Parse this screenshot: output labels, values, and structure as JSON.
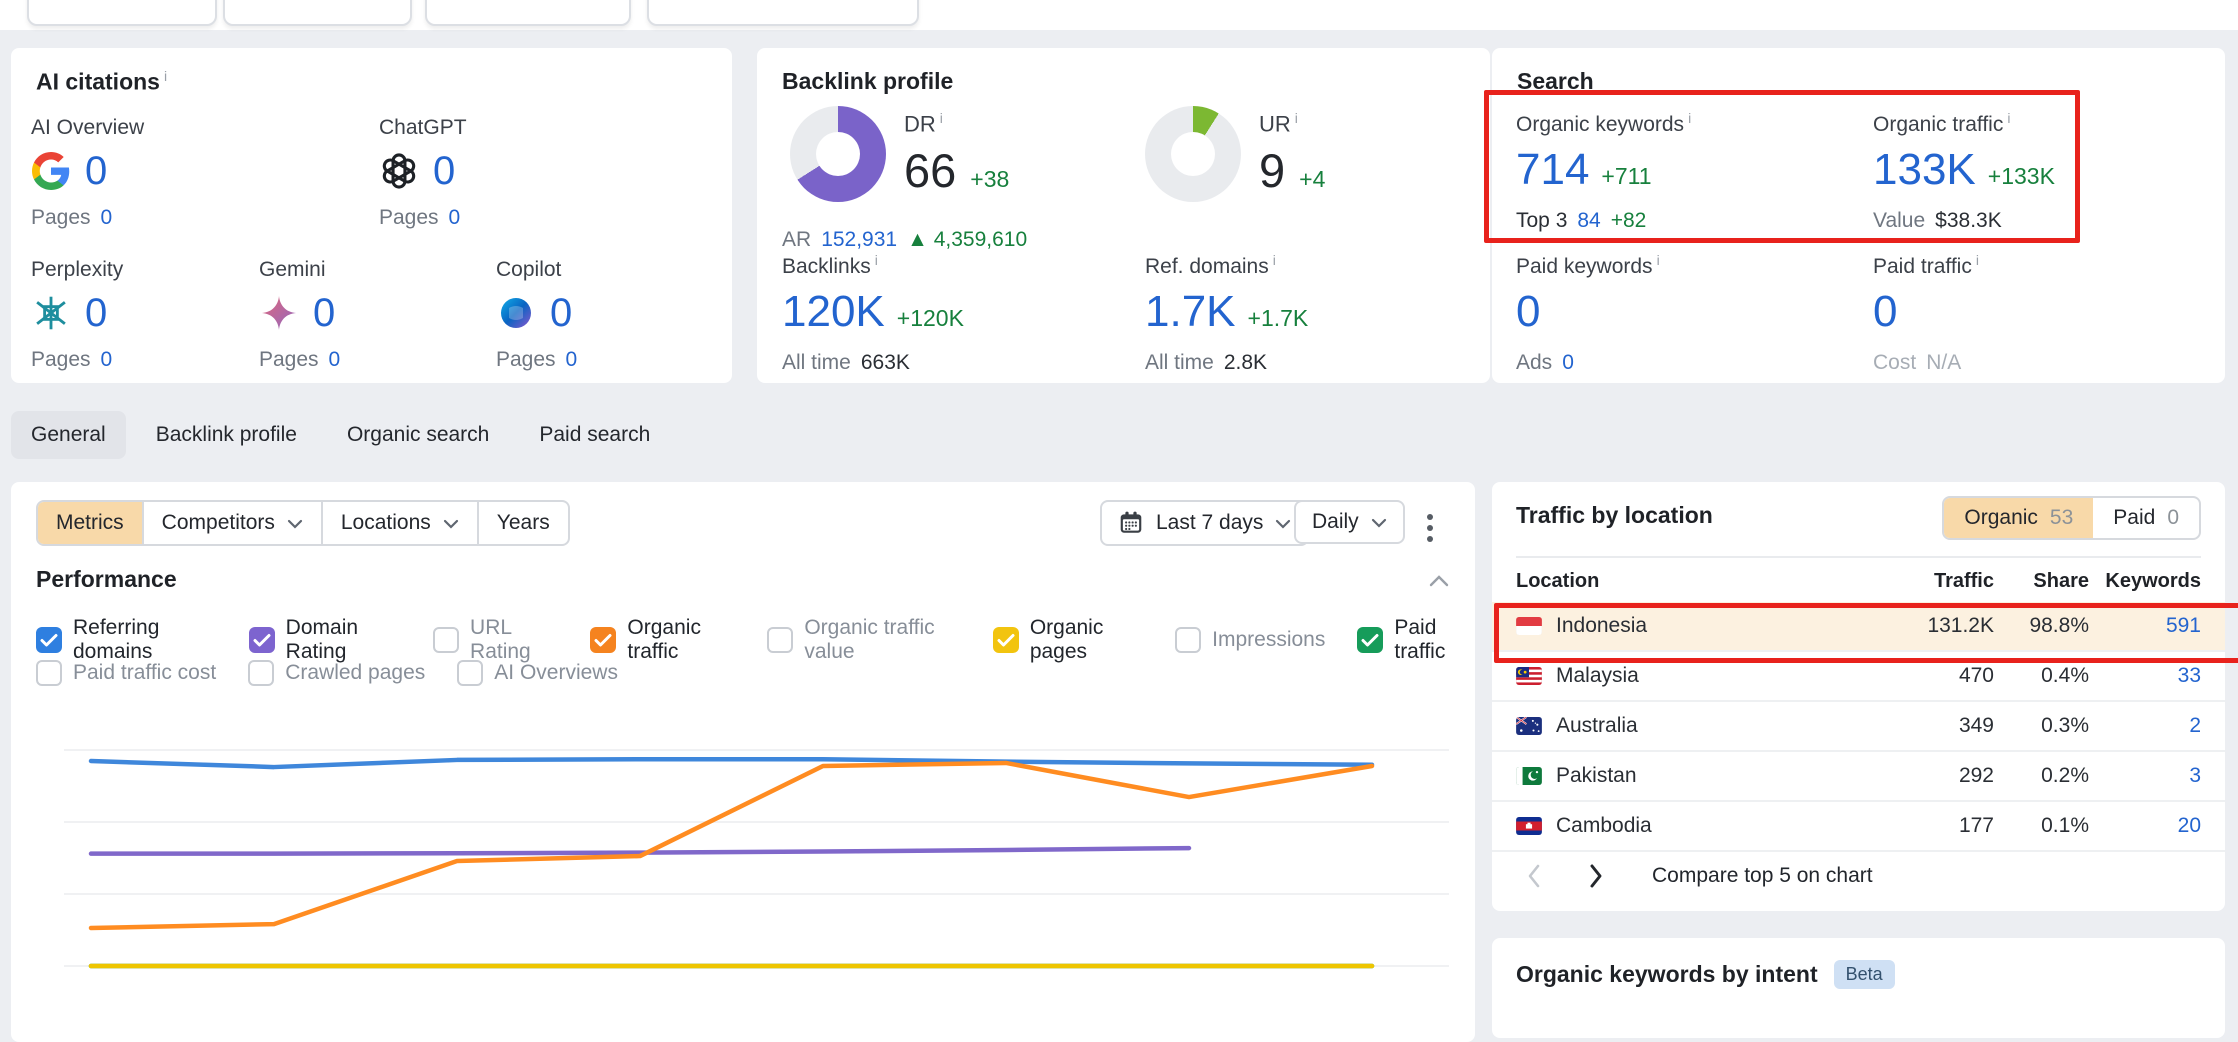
{
  "ai_citations": {
    "title": "AI citations",
    "pages_label": "Pages",
    "items": [
      {
        "name": "AI Overview",
        "icon": "google",
        "value": "0",
        "pages": "0"
      },
      {
        "name": "ChatGPT",
        "icon": "openai",
        "value": "0",
        "pages": "0"
      },
      {
        "name": "Perplexity",
        "icon": "perplexity",
        "value": "0",
        "pages": "0"
      },
      {
        "name": "Gemini",
        "icon": "gemini",
        "value": "0",
        "pages": "0"
      },
      {
        "name": "Copilot",
        "icon": "copilot",
        "value": "0",
        "pages": "0"
      }
    ]
  },
  "backlink_profile": {
    "title": "Backlink profile",
    "dr": {
      "label": "DR",
      "value": "66",
      "delta": "+38",
      "percent": 66,
      "ring_color": "#7a63c9"
    },
    "ar": {
      "label": "AR",
      "value": "152,931",
      "delta": "4,359,610"
    },
    "ur": {
      "label": "UR",
      "value": "9",
      "delta": "+4",
      "percent": 9,
      "ring_color": "#7cb832"
    },
    "backlinks": {
      "label": "Backlinks",
      "value": "120K",
      "delta": "+120K",
      "sub_label": "All time",
      "sub_value": "663K"
    },
    "ref_domains": {
      "label": "Ref. domains",
      "value": "1.7K",
      "delta": "+1.7K",
      "sub_label": "All time",
      "sub_value": "2.8K"
    }
  },
  "search": {
    "title": "Search",
    "organic_keywords": {
      "label": "Organic keywords",
      "value": "714",
      "delta": "+711",
      "sub_label": "Top 3",
      "sub_value": "84",
      "sub_delta": "+82"
    },
    "organic_traffic": {
      "label": "Organic traffic",
      "value": "133K",
      "delta": "+133K",
      "sub_label": "Value",
      "sub_value": "$38.3K"
    },
    "paid_keywords": {
      "label": "Paid keywords",
      "value": "0",
      "sub_label": "Ads",
      "sub_value": "0"
    },
    "paid_traffic": {
      "label": "Paid traffic",
      "value": "0",
      "sub_label": "Cost",
      "sub_value": "N/A"
    }
  },
  "tabs": [
    {
      "label": "General",
      "active": true
    },
    {
      "label": "Backlink profile",
      "active": false
    },
    {
      "label": "Organic search",
      "active": false
    },
    {
      "label": "Paid search",
      "active": false
    }
  ],
  "filters": {
    "segments": [
      {
        "label": "Metrics",
        "active": true,
        "chevron": false
      },
      {
        "label": "Competitors",
        "active": false,
        "chevron": true
      },
      {
        "label": "Locations",
        "active": false,
        "chevron": true
      },
      {
        "label": "Years",
        "active": false,
        "chevron": false
      }
    ],
    "date_range": "Last 7 days",
    "granularity": "Daily"
  },
  "performance": {
    "title": "Performance",
    "checkbox_rows": [
      [
        {
          "label": "Referring domains",
          "checked": true,
          "color": "#2e7fe0"
        },
        {
          "label": "Domain Rating",
          "checked": true,
          "color": "#7d64cf"
        },
        {
          "label": "URL Rating",
          "checked": false
        },
        {
          "label": "Organic traffic",
          "checked": true,
          "color": "#f5831f"
        },
        {
          "label": "Organic traffic value",
          "checked": false
        },
        {
          "label": "Organic pages",
          "checked": true,
          "color": "#f2c40f"
        },
        {
          "label": "Impressions",
          "checked": false
        },
        {
          "label": "Paid traffic",
          "checked": true,
          "color": "#169c5a"
        }
      ],
      [
        {
          "label": "Paid traffic cost",
          "checked": false
        },
        {
          "label": "Crawled pages",
          "checked": false
        },
        {
          "label": "AI Overviews",
          "checked": false
        }
      ]
    ]
  },
  "chart_data": {
    "type": "line",
    "x_count": 8,
    "x_axis_labels_visible": false,
    "unit": "relative height: 0 = bottom gridline, 100 = top gridline (no numeric axis labels visible in screenshot)",
    "gridlines": 4,
    "legend": "none (series toggled via Performance checkboxes)",
    "series": [
      {
        "name": "Paid traffic",
        "color": "#169c5a",
        "values": [
          0,
          0,
          0,
          0,
          0,
          0,
          0,
          0
        ]
      },
      {
        "name": "Organic pages",
        "color": "#eec500",
        "values": [
          0,
          0,
          0,
          0,
          0,
          0,
          0,
          0
        ]
      },
      {
        "name": "Domain Rating",
        "color": "#8068ca",
        "values": [
          52,
          52,
          52.2,
          52.5,
          53,
          53.7,
          54.6,
          null
        ]
      },
      {
        "name": "Referring domains",
        "color": "#3f87db",
        "values": [
          94.9,
          92.1,
          95.4,
          95.7,
          95.7,
          94.6,
          93.8,
          93.2
        ]
      },
      {
        "name": "Organic traffic",
        "color": "#ff8c21",
        "values": [
          17.6,
          19.4,
          48.6,
          50.9,
          92.6,
          94,
          78.2,
          92.6
        ]
      }
    ]
  },
  "traffic_by_location": {
    "title": "Traffic by location",
    "toggle": [
      {
        "label": "Organic",
        "count": "53",
        "active": true
      },
      {
        "label": "Paid",
        "count": "0",
        "active": false
      }
    ],
    "columns": [
      "Location",
      "Traffic",
      "Share",
      "Keywords"
    ],
    "rows": [
      {
        "flag": "id",
        "location": "Indonesia",
        "traffic": "131.2K",
        "share": "98.8%",
        "keywords": "591",
        "highlighted": true
      },
      {
        "flag": "my",
        "location": "Malaysia",
        "traffic": "470",
        "share": "0.4%",
        "keywords": "33",
        "highlighted": false
      },
      {
        "flag": "au",
        "location": "Australia",
        "traffic": "349",
        "share": "0.3%",
        "keywords": "2",
        "highlighted": false
      },
      {
        "flag": "pk",
        "location": "Pakistan",
        "traffic": "292",
        "share": "0.2%",
        "keywords": "3",
        "highlighted": false
      },
      {
        "flag": "kh",
        "location": "Cambodia",
        "traffic": "177",
        "share": "0.1%",
        "keywords": "20",
        "highlighted": false
      }
    ],
    "compare_label": "Compare top 5 on chart"
  },
  "intent_panel": {
    "title": "Organic keywords by intent",
    "badge": "Beta"
  },
  "colors": {
    "accent_tan": "#f8d9a9",
    "annotation_red": "#e8221c",
    "link_blue": "#2364cf",
    "delta_green": "#17803d",
    "row_highlight": "#fcf1e0"
  }
}
